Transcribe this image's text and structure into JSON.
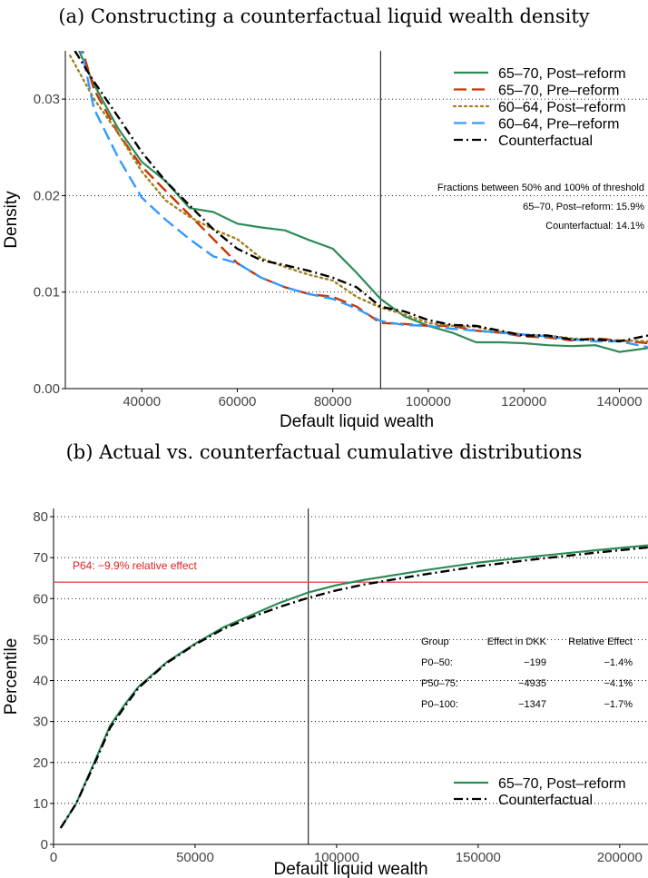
{
  "chart_data": [
    {
      "type": "line",
      "title": "(a) Constructing a counterfactual liquid wealth density",
      "xlabel": "Default liquid wealth",
      "ylabel": "Density",
      "xlim": [
        24000,
        146000
      ],
      "ylim": [
        0,
        0.035
      ],
      "xticks": [
        40000,
        60000,
        80000,
        100000,
        120000,
        140000
      ],
      "yticks": [
        0.0,
        0.01,
        0.02,
        0.03
      ],
      "ytick_labels": [
        "0.00",
        "0.01",
        "0.02",
        "0.03"
      ],
      "vline_x": 90000,
      "legend_position": "top-right",
      "grid": "horizontal dotted",
      "annotations": [
        "Fractions between 50% and 100% of threshold",
        "65–70, Post–reform: 15.9%",
        "Counterfactual: 14.1%"
      ],
      "series": [
        {
          "name": "65–70, Post–reform",
          "color": "#2e8b57",
          "dash": "solid",
          "x": [
            26000,
            30000,
            35000,
            40000,
            45000,
            50000,
            55000,
            60000,
            65000,
            70000,
            75000,
            80000,
            85000,
            90000,
            95000,
            100000,
            105000,
            110000,
            115000,
            120000,
            125000,
            130000,
            135000,
            140000,
            146000
          ],
          "y": [
            0.036,
            0.0315,
            0.027,
            0.0235,
            0.0215,
            0.0187,
            0.0183,
            0.0171,
            0.0167,
            0.0164,
            0.0154,
            0.0145,
            0.012,
            0.0093,
            0.0075,
            0.0065,
            0.0058,
            0.0048,
            0.0048,
            0.0047,
            0.0045,
            0.0044,
            0.0045,
            0.0038,
            0.0042
          ]
        },
        {
          "name": "65–70, Pre–reform",
          "color": "#cc3300",
          "dash": "dashed",
          "x": [
            27000,
            30000,
            35000,
            40000,
            45000,
            50000,
            55000,
            60000,
            65000,
            70000,
            75000,
            80000,
            85000,
            90000,
            95000,
            100000,
            105000,
            110000,
            115000,
            120000,
            125000,
            130000,
            135000,
            140000,
            146000
          ],
          "y": [
            0.036,
            0.031,
            0.0265,
            0.023,
            0.0205,
            0.018,
            0.0155,
            0.013,
            0.0115,
            0.0105,
            0.0098,
            0.0095,
            0.0085,
            0.0068,
            0.0067,
            0.0065,
            0.0065,
            0.006,
            0.0058,
            0.0054,
            0.0053,
            0.005,
            0.0052,
            0.005,
            0.0047
          ]
        },
        {
          "name": "60–64, Post–reform",
          "color": "#a08020",
          "dash": "dotted",
          "x": [
            25000,
            30000,
            35000,
            40000,
            45000,
            50000,
            55000,
            60000,
            65000,
            70000,
            75000,
            80000,
            85000,
            90000,
            95000,
            100000,
            105000,
            110000,
            115000,
            120000,
            125000,
            130000,
            135000,
            140000,
            146000
          ],
          "y": [
            0.0345,
            0.03,
            0.0265,
            0.0225,
            0.0195,
            0.0178,
            0.0165,
            0.0155,
            0.0135,
            0.0126,
            0.0118,
            0.0112,
            0.0095,
            0.0084,
            0.0077,
            0.0068,
            0.0065,
            0.0064,
            0.0059,
            0.0056,
            0.0055,
            0.0052,
            0.005,
            0.005,
            0.0049
          ]
        },
        {
          "name": "60–64, Pre–reform",
          "color": "#3399ff",
          "dash": "dashed",
          "x": [
            27000,
            30000,
            35000,
            40000,
            45000,
            50000,
            55000,
            60000,
            65000,
            70000,
            75000,
            80000,
            85000,
            90000,
            95000,
            100000,
            105000,
            110000,
            115000,
            120000,
            125000,
            130000,
            135000,
            140000,
            146000
          ],
          "y": [
            0.036,
            0.029,
            0.024,
            0.0198,
            0.0175,
            0.0155,
            0.0137,
            0.013,
            0.0115,
            0.0105,
            0.0098,
            0.0093,
            0.0083,
            0.007,
            0.0066,
            0.0065,
            0.0062,
            0.006,
            0.0058,
            0.0056,
            0.0054,
            0.0051,
            0.0049,
            0.0049,
            0.0043
          ]
        },
        {
          "name": "Counterfactual",
          "color": "#000000",
          "dash": "dashdot",
          "x": [
            26000,
            30000,
            35000,
            40000,
            45000,
            50000,
            55000,
            60000,
            65000,
            70000,
            75000,
            80000,
            85000,
            90000,
            95000,
            100000,
            105000,
            110000,
            115000,
            120000,
            125000,
            130000,
            135000,
            140000,
            146000
          ],
          "y": [
            0.035,
            0.0318,
            0.0282,
            0.0245,
            0.0215,
            0.019,
            0.0165,
            0.0145,
            0.0133,
            0.0128,
            0.0122,
            0.0115,
            0.0105,
            0.0085,
            0.008,
            0.0071,
            0.0066,
            0.0065,
            0.006,
            0.0055,
            0.0055,
            0.0051,
            0.0051,
            0.0049,
            0.0055
          ]
        }
      ]
    },
    {
      "type": "line",
      "title": "(b) Actual vs. counterfactual cumulative distributions",
      "xlabel": "Default liquid wealth",
      "ylabel": "Percentile",
      "xlim": [
        0,
        210000
      ],
      "ylim": [
        0,
        82
      ],
      "xticks": [
        0,
        50000,
        100000,
        150000,
        200000
      ],
      "yticks": [
        0,
        10,
        20,
        30,
        40,
        50,
        60,
        70,
        80
      ],
      "vline_x": 90000,
      "hline": {
        "y": 64,
        "color": "#e05050",
        "label": "P64: −9.9% relative effect"
      },
      "legend_position": "bottom-right",
      "grid": "horizontal dotted",
      "table": {
        "headers": [
          "Group",
          "Effect in DKK",
          "Relative Effect"
        ],
        "rows": [
          [
            "P0–50:",
            "−199",
            "−1.4%"
          ],
          [
            "P50–75:",
            "−4935",
            "−4.1%"
          ],
          [
            "P0–100:",
            "−1347",
            "−1.7%"
          ]
        ]
      },
      "series": [
        {
          "name": "65–70, Post–reform",
          "color": "#2e8b57",
          "dash": "solid",
          "x": [
            2500,
            8000,
            15000,
            20000,
            25000,
            30000,
            40000,
            50000,
            60000,
            70000,
            80000,
            90000,
            100000,
            110000,
            130000,
            150000,
            170000,
            190000,
            210000
          ],
          "y": [
            4,
            10,
            21,
            29,
            34,
            38.5,
            44.5,
            49,
            53,
            56,
            59,
            61.5,
            63.3,
            64.6,
            66.8,
            68.8,
            70.3,
            71.7,
            73
          ]
        },
        {
          "name": "Counterfactual",
          "color": "#000000",
          "dash": "dashdot",
          "x": [
            2500,
            8000,
            15000,
            20000,
            25000,
            30000,
            40000,
            50000,
            60000,
            70000,
            80000,
            90000,
            100000,
            110000,
            130000,
            150000,
            170000,
            190000,
            210000
          ],
          "y": [
            4,
            10,
            20.5,
            28.5,
            33.5,
            38.2,
            44.3,
            48.8,
            52.6,
            55.5,
            58,
            60.2,
            62,
            63.5,
            65.8,
            67.9,
            69.6,
            71.1,
            72.5
          ]
        }
      ]
    }
  ]
}
